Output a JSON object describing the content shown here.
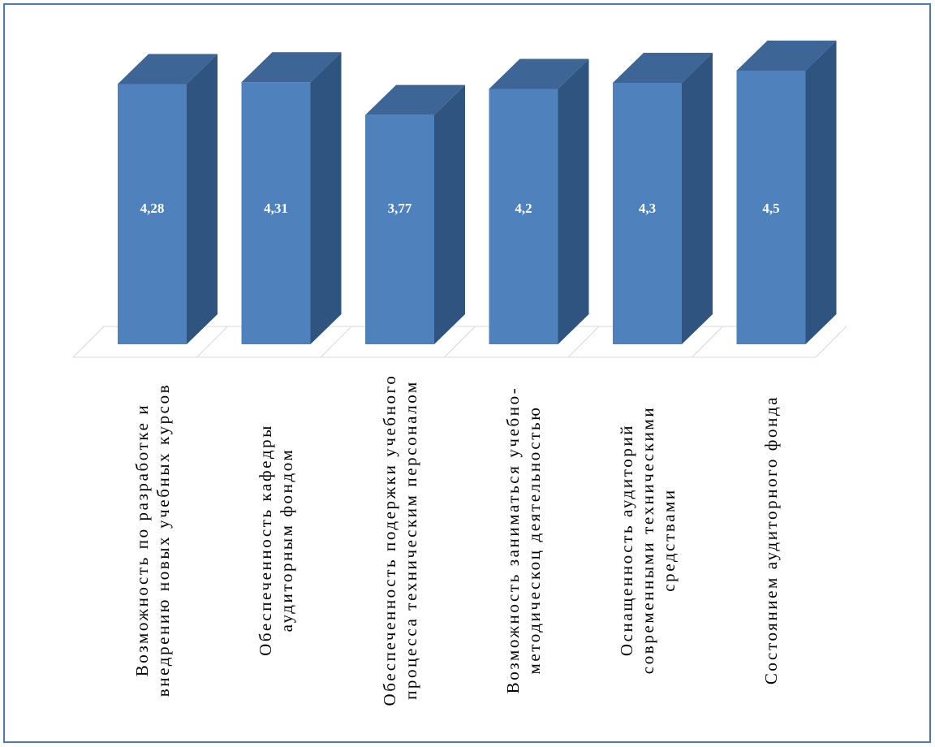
{
  "chart_data": {
    "type": "bar",
    "style": "3d-column",
    "categories": [
      "Возможность по разработке и внедрению новых учебных курсов",
      "Обеспеченность кафедры аудиторным фондом",
      "Обеспеченность подержки учебного процесса техническим персоналом",
      "Возможность заниматься учебно-методическоц деятельностью",
      "Оснащенность аудиторий современными техническими средствами",
      "Состоянием аудиторного фонда"
    ],
    "values": [
      4.28,
      4.31,
      3.77,
      4.2,
      4.3,
      4.5
    ],
    "value_labels": [
      "4,28",
      "4,31",
      "3,77",
      "4,2",
      "4,3",
      "4,5"
    ],
    "title": "",
    "xlabel": "",
    "ylabel": "",
    "legend": "none",
    "grid": false,
    "colors": {
      "front": "#4f81bd",
      "side": "#2f5480",
      "top": "#3d6596",
      "floor_line": "#d9d9d9",
      "frame": "#4a7ab5",
      "label_text": "#ffffff"
    }
  }
}
